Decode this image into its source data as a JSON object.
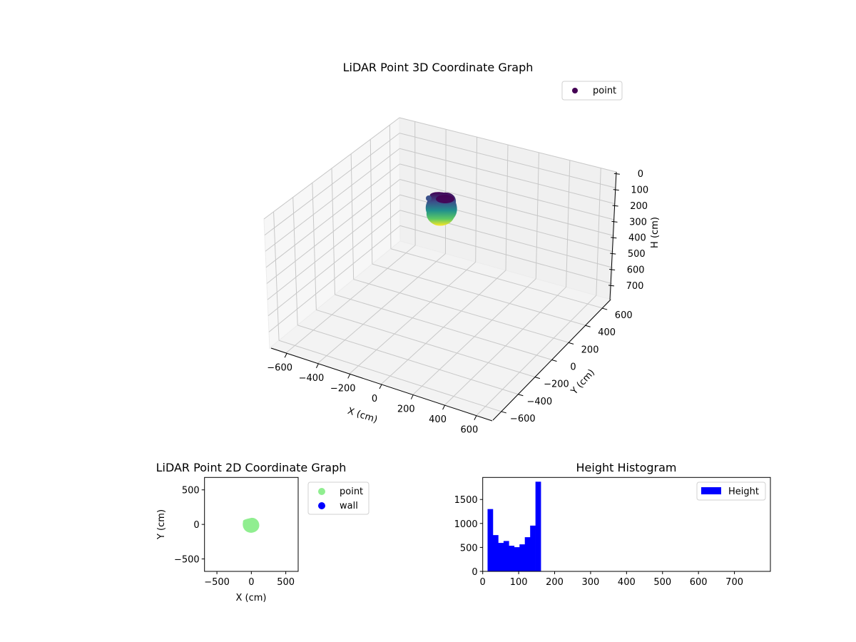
{
  "chart_data": [
    {
      "type": "scatter",
      "title": "LiDAR Point 3D Coordinate Graph",
      "projection": "3d",
      "xlabel": "X (cm)",
      "ylabel": "Y (cm)",
      "zlabel": "H (cm)",
      "xlim": [
        -700,
        700
      ],
      "ylim": [
        -700,
        700
      ],
      "zlim": [
        800,
        0
      ],
      "xticks": [
        "−600",
        "−400",
        "−200",
        "0",
        "200",
        "400",
        "600"
      ],
      "yticks": [
        "−600",
        "−400",
        "−200",
        "0",
        "200",
        "400",
        "600"
      ],
      "zticks": [
        "0",
        "100",
        "200",
        "300",
        "400",
        "500",
        "600",
        "700"
      ],
      "legend": [
        {
          "label": "point",
          "color": "#440154"
        }
      ],
      "colormap": "viridis",
      "description": "Dense cluster of points centered near X≈0, Y≈0, heights ~15–160 cm, colored by height (viridis)"
    },
    {
      "type": "scatter",
      "title": "LiDAR Point 2D Coordinate Graph",
      "xlabel": "X (cm)",
      "ylabel": "Y (cm)",
      "xlim": [
        -680,
        680
      ],
      "ylim": [
        -680,
        680
      ],
      "xticks": [
        "−500",
        "0",
        "500"
      ],
      "yticks": [
        "−500",
        "0",
        "500"
      ],
      "legend": [
        {
          "label": "point",
          "color": "#90ee90"
        },
        {
          "label": "wall",
          "color": "#0000ff"
        }
      ],
      "series": [
        {
          "name": "point",
          "color": "#90ee90",
          "cluster_center": [
            0,
            0
          ],
          "cluster_radius": 100
        },
        {
          "name": "wall",
          "color": "#0000ff",
          "values": []
        }
      ]
    },
    {
      "type": "bar",
      "subtype": "histogram",
      "title": "Height Histogram",
      "xlabel": "",
      "ylabel": "",
      "xlim": [
        0,
        800
      ],
      "ylim": [
        0,
        1960
      ],
      "xticks": [
        "0",
        "100",
        "200",
        "300",
        "400",
        "500",
        "600",
        "700"
      ],
      "yticks": [
        "0",
        "500",
        "1000",
        "1500"
      ],
      "legend": [
        {
          "label": "Height",
          "color": "#0000ff"
        }
      ],
      "bin_edges": [
        13.5,
        28.3,
        43.1,
        57.9,
        72.7,
        87.5,
        102.3,
        117.1,
        131.9,
        146.7,
        161.5
      ],
      "values": [
        1300,
        757,
        594,
        634,
        535,
        505,
        564,
        713,
        955,
        1871
      ],
      "color": "#0000ff"
    }
  ]
}
